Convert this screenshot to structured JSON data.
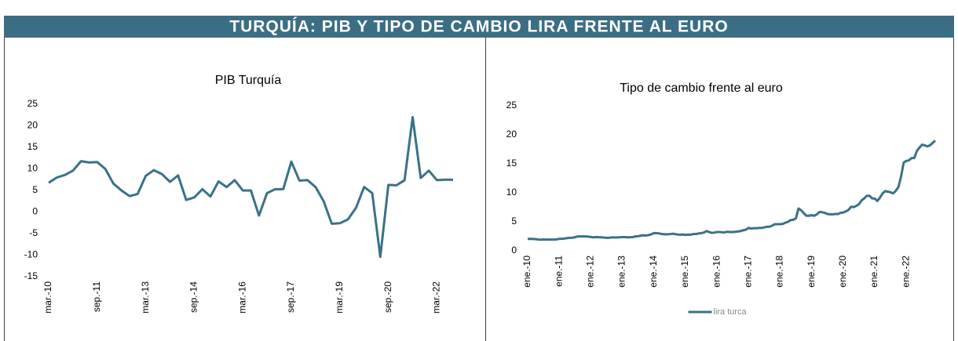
{
  "header": {
    "title": "TURQUÍA: PIB Y TIPO DE CAMBIO LIRA FRENTE AL EURO"
  },
  "chart_data": [
    {
      "type": "line",
      "title": "PIB Turquía",
      "categories": [
        "mar.-10",
        null,
        null,
        null,
        null,
        null,
        "sep.-11",
        null,
        null,
        null,
        null,
        null,
        "mar.-13",
        null,
        null,
        null,
        null,
        null,
        "sep.-14",
        null,
        null,
        null,
        null,
        null,
        "mar.-16",
        null,
        null,
        null,
        null,
        null,
        "sep.-17",
        null,
        null,
        null,
        null,
        null,
        "mar.-19",
        null,
        null,
        null,
        null,
        null,
        "sep.-20",
        null,
        null,
        null,
        null,
        null,
        "mar.-22",
        null,
        null
      ],
      "series": [
        {
          "color": "#3a7189",
          "values": [
            6.8,
            8,
            8.6,
            9.6,
            11.8,
            11.5,
            11.6,
            10,
            6.6,
            5,
            3.7,
            4.2,
            8.4,
            9.7,
            8.8,
            7,
            8.5,
            2.8,
            3.4,
            5.3,
            3.6,
            7.1,
            5.8,
            7.4,
            5,
            5,
            -0.8,
            4.4,
            5.3,
            5.3,
            11.7,
            7.3,
            7.4,
            5.8,
            2.5,
            -2.7,
            -2.6,
            -1.7,
            1,
            5.8,
            4.4,
            -10.4,
            6.3,
            6.2,
            7.4,
            22,
            7.9,
            9.6,
            7.4,
            7.5,
            7.5
          ]
        }
      ],
      "ylim": [
        -15,
        25
      ],
      "yticks": [
        -15,
        -10,
        -5,
        0,
        5,
        10,
        15,
        20,
        25
      ]
    },
    {
      "type": "line",
      "title": "Tipo de cambio frente al euro",
      "categories": [
        "ene.-10",
        null,
        null,
        null,
        null,
        null,
        null,
        null,
        null,
        null,
        null,
        null,
        "ene.-11",
        null,
        null,
        null,
        null,
        null,
        null,
        null,
        null,
        null,
        null,
        null,
        "ene.-12",
        null,
        null,
        null,
        null,
        null,
        null,
        null,
        null,
        null,
        null,
        null,
        "ene.-13",
        null,
        null,
        null,
        null,
        null,
        null,
        null,
        null,
        null,
        null,
        null,
        "ene.-14",
        null,
        null,
        null,
        null,
        null,
        null,
        null,
        null,
        null,
        null,
        null,
        "ene.-15",
        null,
        null,
        null,
        null,
        null,
        null,
        null,
        null,
        null,
        null,
        null,
        "ene.-16",
        null,
        null,
        null,
        null,
        null,
        null,
        null,
        null,
        null,
        null,
        null,
        "ene.-17",
        null,
        null,
        null,
        null,
        null,
        null,
        null,
        null,
        null,
        null,
        null,
        "ene.-18",
        null,
        null,
        null,
        null,
        null,
        null,
        null,
        null,
        null,
        null,
        null,
        "ene.-19",
        null,
        null,
        null,
        null,
        null,
        null,
        null,
        null,
        null,
        null,
        null,
        "ene.-20",
        null,
        null,
        null,
        null,
        null,
        null,
        null,
        null,
        null,
        null,
        null,
        "ene.-21",
        null,
        null,
        null,
        null,
        null,
        null,
        null,
        null,
        null,
        null,
        null,
        "ene.-22",
        null,
        null,
        null,
        null,
        null,
        null,
        null,
        null,
        null,
        null,
        null
      ],
      "series": [
        {
          "name": "lira turca",
          "color": "#3a7189",
          "values": [
            2.05,
            2.08,
            2.05,
            2.02,
            1.95,
            1.93,
            1.96,
            1.95,
            1.95,
            1.95,
            1.95,
            1.97,
            2.08,
            2.07,
            2.12,
            2.2,
            2.24,
            2.26,
            2.35,
            2.48,
            2.48,
            2.5,
            2.48,
            2.45,
            2.4,
            2.32,
            2.38,
            2.35,
            2.33,
            2.29,
            2.24,
            2.25,
            2.32,
            2.32,
            2.3,
            2.35,
            2.36,
            2.37,
            2.33,
            2.35,
            2.37,
            2.5,
            2.52,
            2.62,
            2.68,
            2.64,
            2.72,
            2.85,
            3.05,
            3.05,
            3.0,
            2.9,
            2.85,
            2.85,
            2.88,
            2.95,
            2.9,
            2.82,
            2.78,
            2.82,
            2.75,
            2.8,
            2.78,
            2.9,
            2.9,
            3.0,
            3.05,
            3.15,
            3.4,
            3.25,
            3.1,
            3.15,
            3.25,
            3.25,
            3.2,
            3.2,
            3.3,
            3.25,
            3.25,
            3.3,
            3.35,
            3.4,
            3.55,
            3.65,
            3.95,
            3.85,
            3.9,
            3.9,
            3.95,
            3.95,
            4.05,
            4.15,
            4.15,
            4.35,
            4.6,
            4.6,
            4.6,
            4.65,
            4.85,
            5.0,
            5.3,
            5.35,
            5.6,
            7.3,
            7.0,
            6.5,
            6.05,
            6.05,
            6.15,
            6.05,
            6.3,
            6.7,
            6.65,
            6.55,
            6.35,
            6.3,
            6.3,
            6.35,
            6.35,
            6.55,
            6.6,
            6.8,
            7.05,
            7.6,
            7.55,
            7.75,
            8.05,
            8.7,
            9.05,
            9.5,
            9.5,
            9.05,
            9.0,
            8.6,
            9.2,
            9.9,
            10.3,
            10.2,
            10.1,
            9.9,
            10.35,
            11.0,
            12.8,
            15.2,
            15.5,
            15.6,
            16.0,
            16.0,
            17.2,
            17.8,
            18.3,
            18.2,
            18.0,
            18.2,
            18.6,
            19.0
          ]
        }
      ],
      "ylim": [
        0,
        25
      ],
      "yticks": [
        0,
        5,
        10,
        15,
        20,
        25
      ],
      "legend": "bottom"
    }
  ]
}
